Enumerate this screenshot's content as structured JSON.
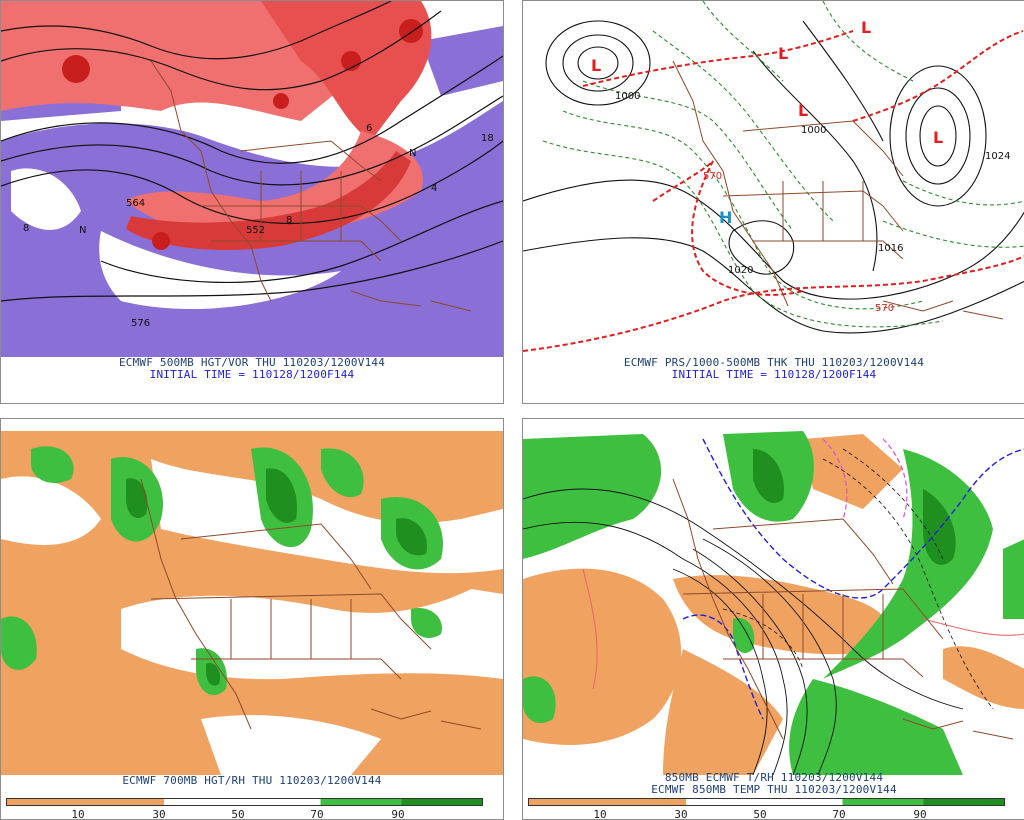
{
  "panels": [
    {
      "id": "vort500",
      "caption1": "ECMWF 500MB HGT/VOR THU 110203/1200V144",
      "caption2": "INITIAL TIME = 110128/1200F144",
      "labels": [
        "576",
        "552",
        "564",
        "4",
        "8",
        "6",
        "8",
        "18",
        "N",
        "N"
      ]
    },
    {
      "id": "pres",
      "caption1": "ECMWF PRS/1000-500MB THK THU 110203/1200V144",
      "caption2": "INITIAL TIME = 110128/1200F144",
      "labels": [
        "1000",
        "1000",
        "1024",
        "1016",
        "1020",
        "570",
        "570",
        "L",
        "L",
        "L",
        "L",
        "L",
        "H"
      ]
    },
    {
      "id": "rh700",
      "caption1": "ECMWF 700MB HGT/RH THU 110203/1200V144",
      "scale_ticks": [
        "10",
        "30",
        "50",
        "70",
        "90"
      ]
    },
    {
      "id": "rh850",
      "caption1": "850MB ECMWF T/RH 110203/1200V144",
      "caption2": "ECMWF 850MB TEMP THU 110203/1200V144",
      "scale_ticks": [
        "10",
        "30",
        "50",
        "70",
        "90"
      ]
    }
  ],
  "colors": {
    "dry": "#f0a261",
    "moist": "#3fbf3f",
    "very_moist": "#1f8f1f",
    "vort_low": "#f07070",
    "vort_high": "#c81e1e",
    "neg_vort": "#8a6fd6",
    "border": "#8b4a2b",
    "caption": "#1e3f78"
  }
}
